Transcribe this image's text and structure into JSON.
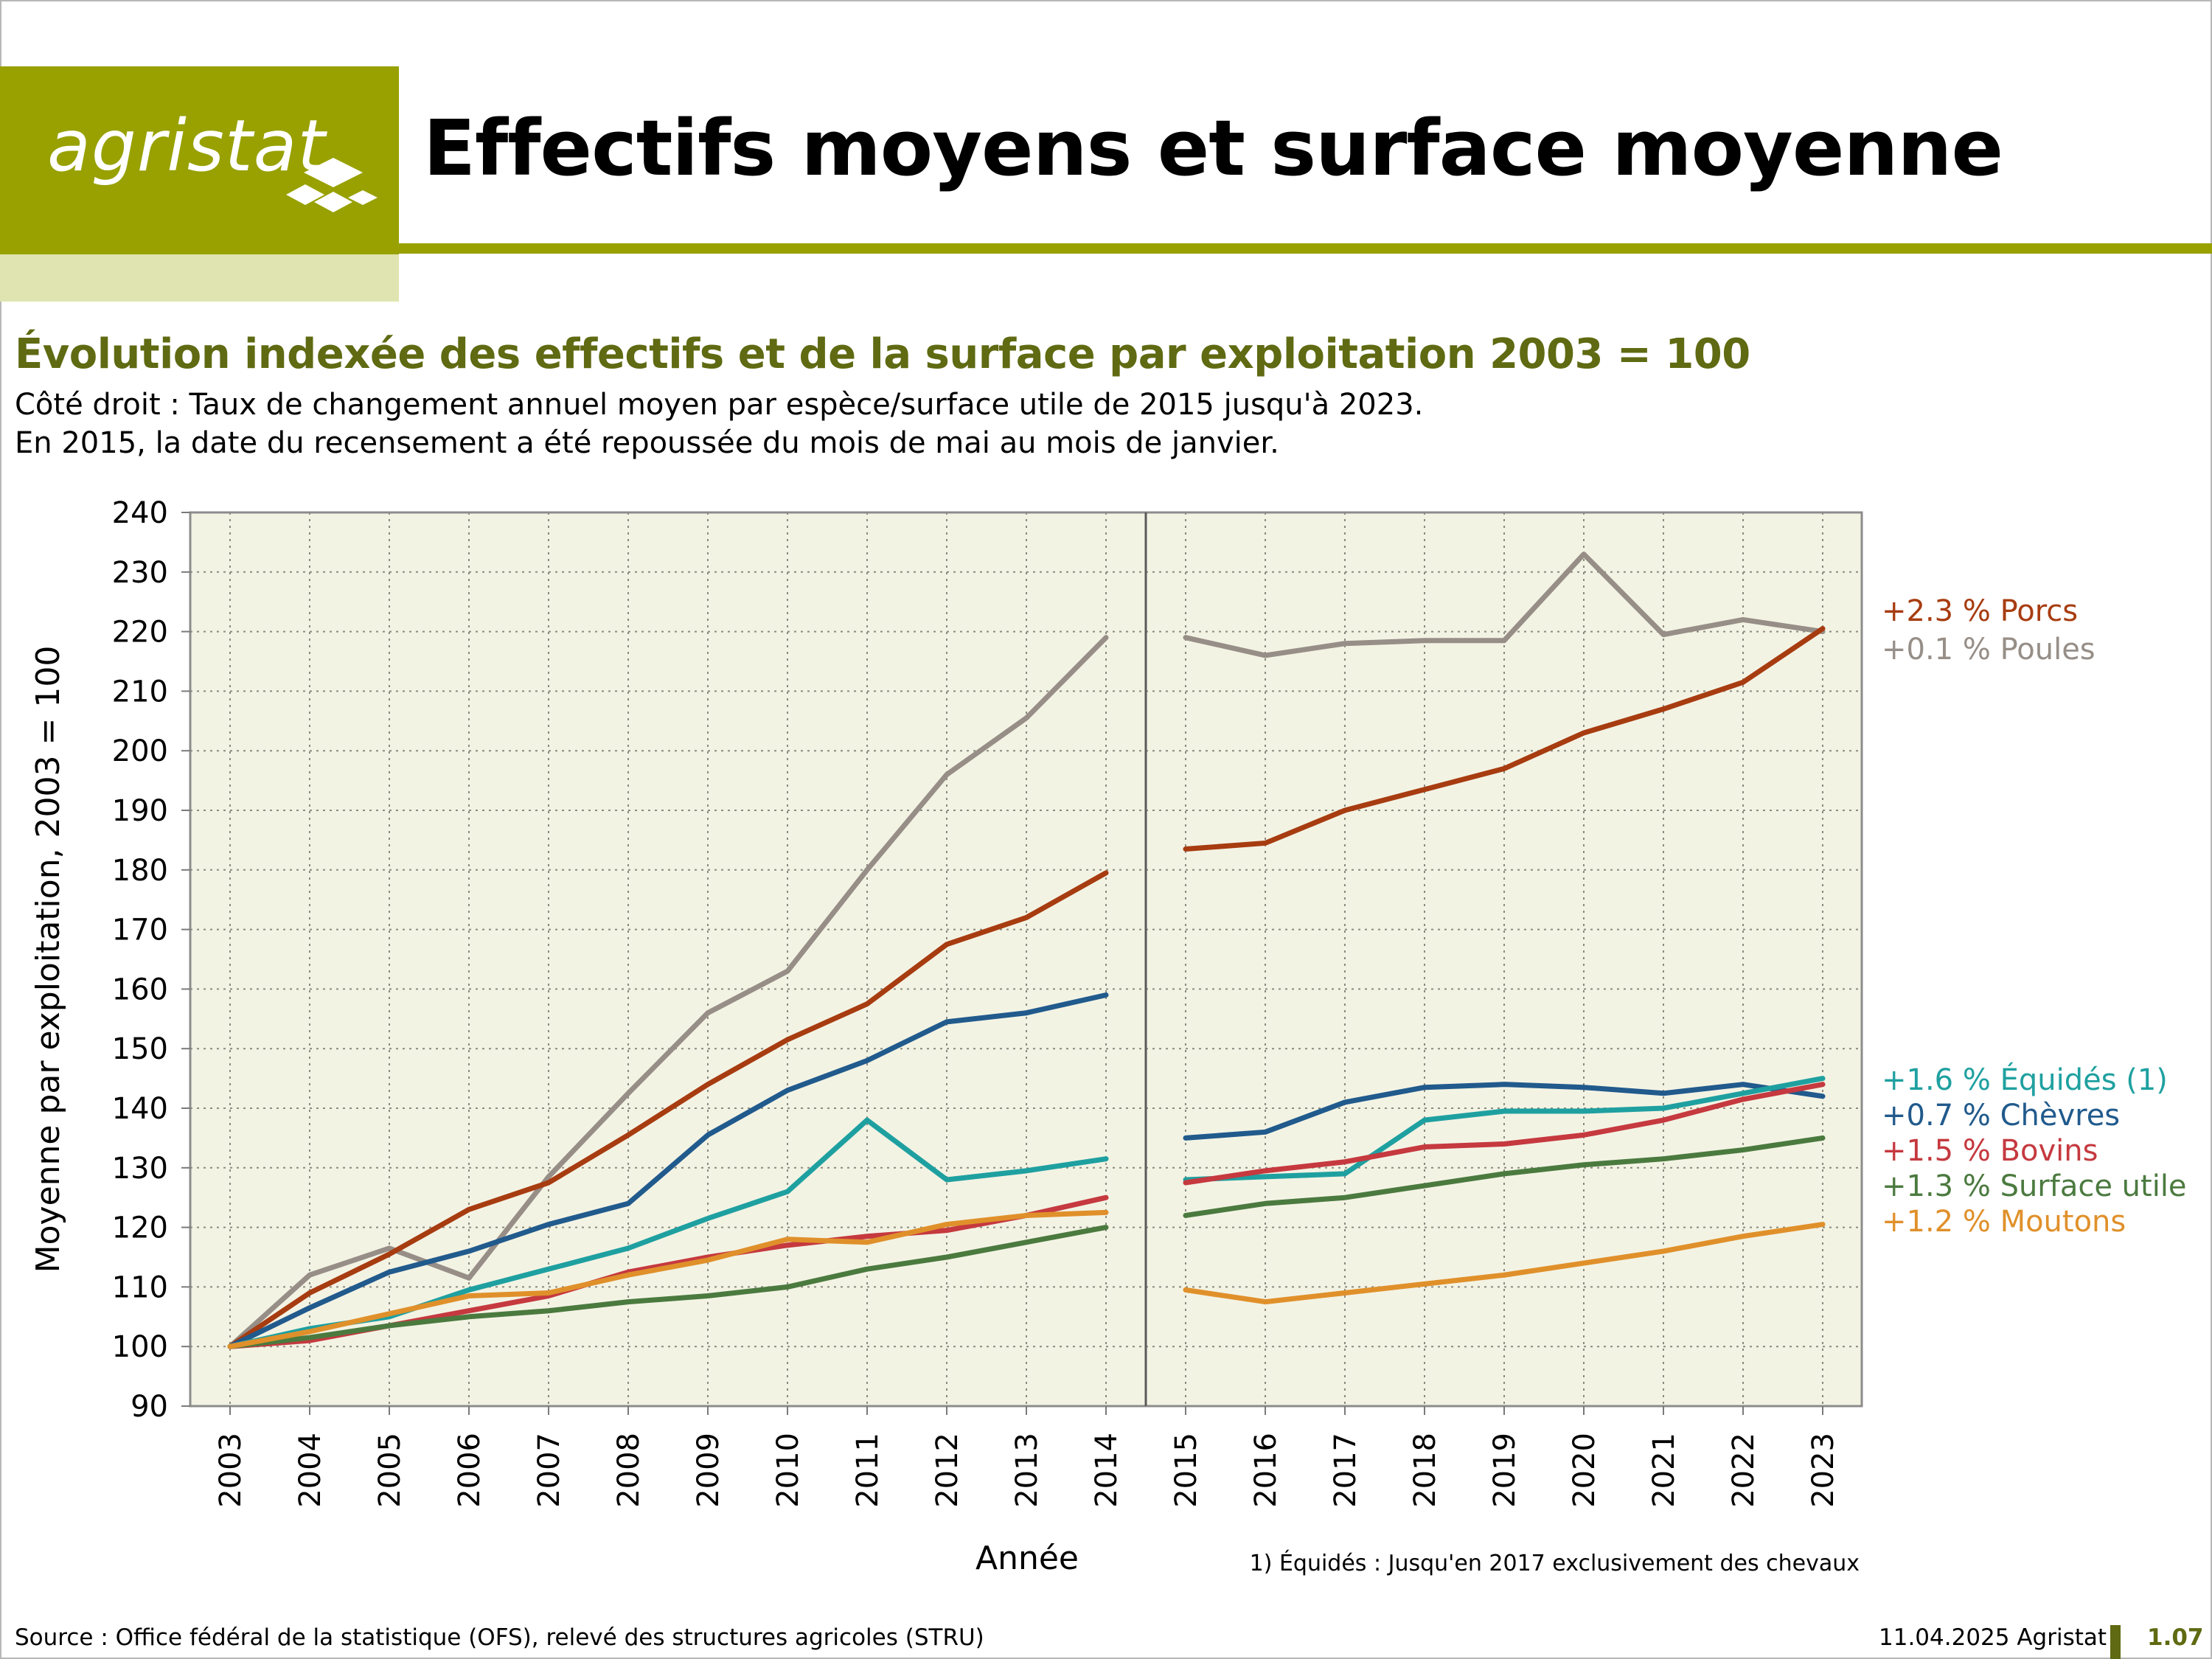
{
  "header": {
    "logo_text": "agristat",
    "title": "Effectifs moyens et surface moyenne",
    "brand_color": "#98a100"
  },
  "intro": {
    "subtitle": "Évolution indexée des effectifs et de la surface par exploitation 2003 = 100",
    "note_1": "Côté droit : Taux de changement annuel moyen par espèce/surface utile de 2015 jusqu'à 2023.",
    "note_2": "En 2015, la date du recensement a été repoussée du mois de mai au mois de janvier."
  },
  "footer": {
    "source": "Source : Office fédéral de la statistique (OFS), relevé des structures agricoles (STRU)",
    "date": "11.04.2025 Agristat",
    "page": "1.07"
  },
  "chart_data": {
    "type": "line",
    "xlabel": "Année",
    "ylabel": "Moyenne par exploitation, 2003 = 100",
    "footnote": "1) Équidés : Jusqu'en 2017 exclusivement des chevaux",
    "ylim": [
      90,
      240
    ],
    "yticks": [
      90,
      100,
      110,
      120,
      130,
      140,
      150,
      160,
      170,
      180,
      190,
      200,
      210,
      220,
      230,
      240
    ],
    "grid": true,
    "plot_background": "#f3f3e4",
    "x": [
      "2003",
      "2004",
      "2005",
      "2006",
      "2007",
      "2008",
      "2009",
      "2010",
      "2011",
      "2012",
      "2013",
      "2014",
      "2015",
      "2016",
      "2017",
      "2018",
      "2019",
      "2020",
      "2021",
      "2022",
      "2023"
    ],
    "break_after": "2014",
    "series": [
      {
        "name": "Poules",
        "rate_label": "+0.1 % Poules",
        "color": "#968e87",
        "values": [
          100,
          112,
          116.5,
          111.5,
          128.5,
          142.5,
          156,
          163,
          180,
          196,
          205.5,
          219,
          219,
          216,
          218,
          218.5,
          218.5,
          233,
          219.5,
          222,
          220
        ]
      },
      {
        "name": "Porcs",
        "rate_label": "+2.3 % Porcs",
        "color": "#a73c10",
        "values": [
          100,
          109,
          115.5,
          123,
          127.5,
          135.5,
          144,
          151.5,
          157.5,
          167.5,
          172,
          179.5,
          183.5,
          184.5,
          190,
          193.5,
          197,
          203,
          207,
          211.5,
          220.5
        ]
      },
      {
        "name": "Chèvres",
        "rate_label": "+0.7 % Chèvres",
        "color": "#215a8c",
        "values": [
          100,
          106.5,
          112.5,
          116,
          120.5,
          124,
          135.5,
          143,
          148,
          154.5,
          156,
          159,
          135,
          136,
          141,
          143.5,
          144,
          143.5,
          142.5,
          144,
          142
        ]
      },
      {
        "name": "Équidés (1)",
        "rate_label": "+1.6 % Équidés (1)",
        "color": "#1fa0a0",
        "values": [
          100,
          103,
          105,
          109.5,
          113,
          116.5,
          121.5,
          126,
          138,
          128,
          129.5,
          131.5,
          128,
          128.5,
          129,
          138,
          139.5,
          139.5,
          140,
          142.5,
          145
        ]
      },
      {
        "name": "Bovins",
        "rate_label": "+1.5 % Bovins",
        "color": "#c5393f",
        "values": [
          100,
          101,
          103.5,
          106,
          108.5,
          112.5,
          115,
          117,
          118.5,
          119.5,
          122,
          125,
          127.5,
          129.5,
          131,
          133.5,
          134,
          135.5,
          138,
          141.5,
          144
        ]
      },
      {
        "name": "Surface utile",
        "rate_label": "+1.3 % Surface utile",
        "color": "#4b7a3f",
        "values": [
          100,
          101.5,
          103.5,
          105,
          106,
          107.5,
          108.5,
          110,
          113,
          115,
          117.5,
          120,
          122,
          124,
          125,
          127,
          129,
          130.5,
          131.5,
          133,
          135
        ]
      },
      {
        "name": "Moutons",
        "rate_label": "+1.2 % Moutons",
        "color": "#e0902a",
        "values": [
          100,
          102.5,
          105.5,
          108.5,
          109,
          112,
          114.5,
          118,
          117.5,
          120.5,
          122,
          122.5,
          109.5,
          107.5,
          109,
          110.5,
          112,
          114,
          116,
          118.5,
          120.5
        ]
      }
    ]
  }
}
